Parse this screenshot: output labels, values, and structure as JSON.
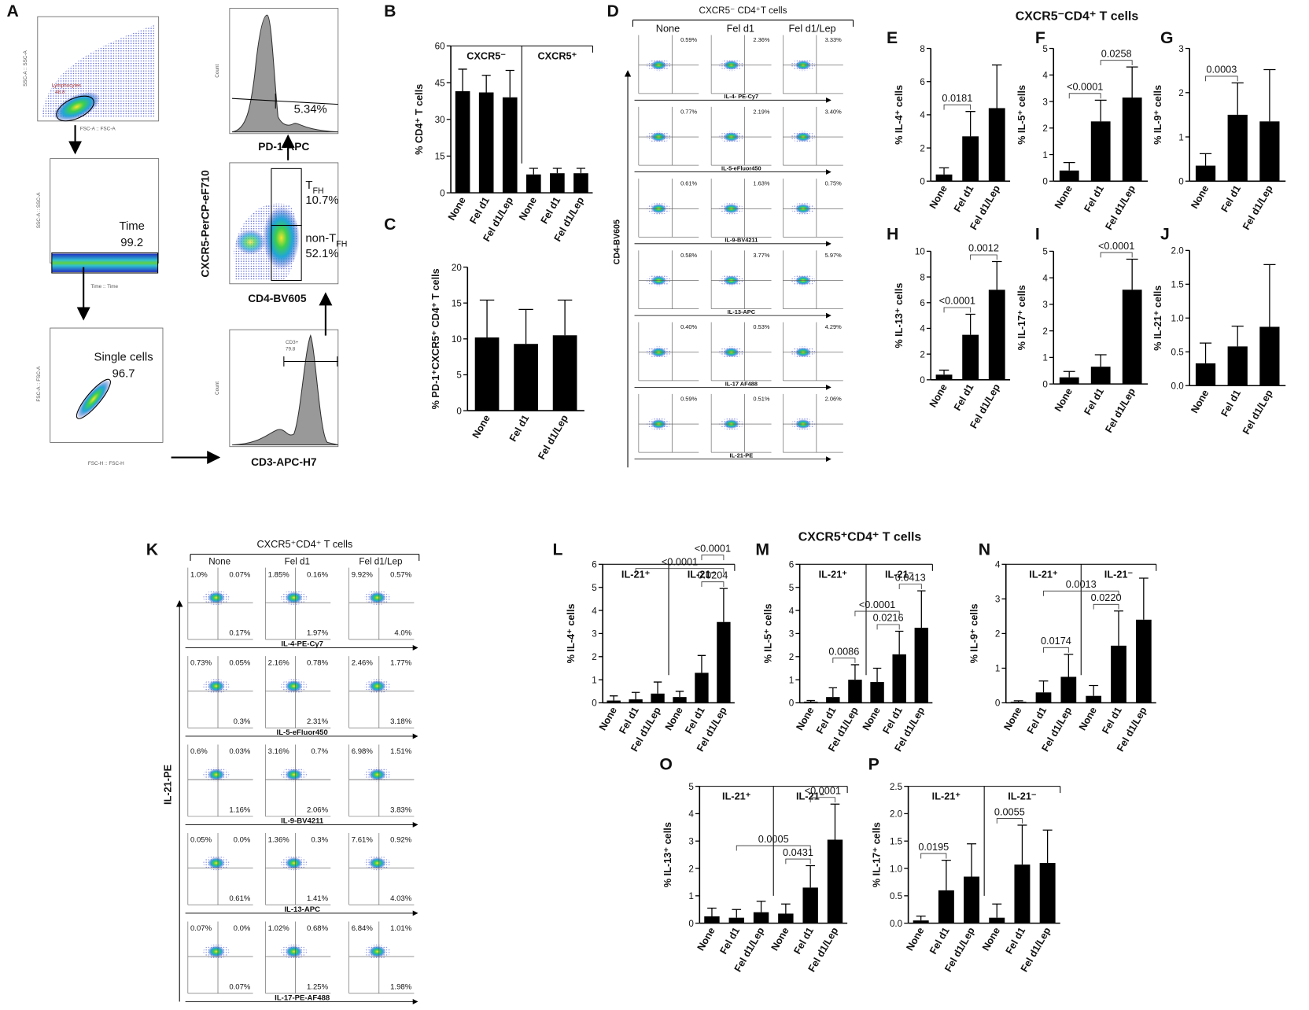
{
  "panel_labels": [
    "A",
    "B",
    "C",
    "D",
    "E",
    "F",
    "G",
    "H",
    "I",
    "J",
    "K",
    "L",
    "M",
    "N",
    "O",
    "P"
  ],
  "section_titles": [
    "CXCR5⁻CD4⁺ T cells",
    "CXCR5⁺CD4⁺ T cells"
  ],
  "gating": {
    "lymphocytes": {
      "name": "Lymphocytes",
      "value": "48.8",
      "x_axis": "FSC-A :: FSC-A",
      "y_axis": "SSC-A :: SSC-A"
    },
    "time": {
      "name": "Time",
      "value": "99.2",
      "x_axis": "Time :: Time",
      "y_axis": "SSC-A :: SSC-A"
    },
    "single_cells": {
      "name": "Single cells",
      "value": "96.7",
      "x_axis": "FSC-H :: FSC-H",
      "y_axis": "FSC-A :: FSC-A"
    },
    "cd3": {
      "name": "CD3+",
      "value": "79.8",
      "x_axis": "CD3-APC-H7",
      "y_axis": "Count"
    },
    "cxcr5_cd4": {
      "x_axis": "CD4-BV605",
      "y_axis": "CXCR5-PerCP-eF710",
      "tfh": {
        "name": "T",
        "sub": "FH",
        "value": "10.7%"
      },
      "non_tfh": {
        "name": "non-T",
        "sub": "FH",
        "value": "52.1%"
      }
    },
    "pd1": {
      "value": "5.34%",
      "x_axis": "PD-1-APC",
      "y_axis": "Count"
    }
  },
  "panel_d": {
    "title": "CXCR5⁻ CD4⁺T cells",
    "columns": [
      "None",
      "Fel d1",
      "Fel d1/Lep"
    ],
    "y_label": "CD4-BV605",
    "rows": [
      {
        "x_label": "IL-4- PE-Cy7",
        "values": [
          "0.59%",
          "2.36%",
          "3.33%"
        ]
      },
      {
        "x_label": "IL-5-eFluor450",
        "values": [
          "0.77%",
          "2.19%",
          "3.40%"
        ]
      },
      {
        "x_label": "IL-9-BV4211",
        "values": [
          "0.61%",
          "1.63%",
          "0.75%"
        ]
      },
      {
        "x_label": "IL-13-APC",
        "values": [
          "0.58%",
          "3.77%",
          "5.97%"
        ]
      },
      {
        "x_label": "IL-17 AF488",
        "values": [
          "0.40%",
          "0.53%",
          "4.29%"
        ]
      },
      {
        "x_label": "IL-21-PE",
        "values": [
          "0.59%",
          "0.51%",
          "2.06%"
        ]
      }
    ]
  },
  "panel_k": {
    "title": "CXCR5⁺CD4⁺ T cells",
    "columns": [
      "None",
      "Fel d1",
      "Fel d1/Lep"
    ],
    "y_label": "IL-21-PE",
    "rows": [
      {
        "x_label": "IL-4-PE-Cy7",
        "values": [
          [
            "1.0%",
            "0.07%",
            "0.17%"
          ],
          [
            "1.85%",
            "0.16%",
            "1.97%"
          ],
          [
            "9.92%",
            "0.57%",
            "4.0%"
          ]
        ]
      },
      {
        "x_label": "IL-5-eFluor450",
        "values": [
          [
            "0.73%",
            "0.05%",
            "0.3%"
          ],
          [
            "2.16%",
            "0.78%",
            "2.31%"
          ],
          [
            "2.46%",
            "1.77%",
            "3.18%"
          ]
        ]
      },
      {
        "x_label": "IL-9-BV4211",
        "values": [
          [
            "0.6%",
            "0.03%",
            "1.16%"
          ],
          [
            "3.16%",
            "0.7%",
            "2.06%"
          ],
          [
            "6.98%",
            "1.51%",
            "3.83%"
          ]
        ]
      },
      {
        "x_label": "IL-13-APC",
        "values": [
          [
            "0.05%",
            "0.0%",
            "0.61%"
          ],
          [
            "1.36%",
            "0.3%",
            "1.41%"
          ],
          [
            "7.61%",
            "0.92%",
            "4.03%"
          ]
        ]
      },
      {
        "x_label": "IL-17-PE-AF488",
        "values": [
          [
            "0.07%",
            "0.0%",
            "0.07%"
          ],
          [
            "1.02%",
            "0.68%",
            "1.25%"
          ],
          [
            "6.84%",
            "1.01%",
            "1.98%"
          ]
        ]
      }
    ]
  },
  "chart_data": [
    {
      "type": "bar",
      "y_label": "% CD4⁺ T cells",
      "categories": [
        "None",
        "Fel d1",
        "Fel d1/Lep",
        "None",
        "Fel d1",
        "Fel d1/Lep"
      ],
      "values": [
        41.5,
        41,
        39,
        7.5,
        8,
        8
      ],
      "errors": [
        9,
        7,
        11,
        2.5,
        2,
        2
      ],
      "color": "#000000",
      "ylim": [
        0,
        60
      ],
      "yticks": [
        0,
        15,
        30,
        45,
        60
      ],
      "groups": [
        "CXCR5⁻",
        "CXCR5⁺"
      ],
      "annotations": []
    },
    {
      "type": "bar",
      "y_label": "% PD-1⁺CXCR5⁺ CD4⁺ T cells",
      "categories": [
        "None",
        "Fel d1",
        "Fel d1/Lep"
      ],
      "values": [
        10.2,
        9.3,
        10.5
      ],
      "errors": [
        5.2,
        4.8,
        4.9
      ],
      "color": "#000000",
      "ylim": [
        0,
        20
      ],
      "yticks": [
        0,
        5,
        10,
        15,
        20
      ],
      "annotations": []
    },
    {
      "type": "bar",
      "y_label": "% IL-4⁺ cells",
      "categories": [
        "None",
        "Fel d1",
        "Fel d1/Lep"
      ],
      "values": [
        0.4,
        2.7,
        4.4
      ],
      "errors": [
        0.4,
        1.5,
        2.6
      ],
      "color": "#000000",
      "ylim": [
        0,
        8
      ],
      "yticks": [
        0,
        2,
        4,
        6,
        8
      ],
      "annotations": [
        {
          "from": 0,
          "to": 1,
          "label": "0.0181"
        }
      ]
    },
    {
      "type": "bar",
      "y_label": "% IL-5⁺ cells",
      "categories": [
        "None",
        "Fel d1",
        "Fel d1/Lep"
      ],
      "values": [
        0.4,
        2.25,
        3.15
      ],
      "errors": [
        0.3,
        0.8,
        1.15
      ],
      "color": "#000000",
      "ylim": [
        0,
        5
      ],
      "yticks": [
        0,
        1,
        2,
        3,
        4,
        5
      ],
      "annotations": [
        {
          "from": 0,
          "to": 1,
          "label": "<0.0001"
        },
        {
          "from": 1,
          "to": 2,
          "label": "0.0258"
        }
      ]
    },
    {
      "type": "bar",
      "y_label": "% IL-9⁺ cells",
      "categories": [
        "None",
        "Fel d1",
        "Fel d1/Lep"
      ],
      "values": [
        0.35,
        1.5,
        1.35
      ],
      "errors": [
        0.27,
        0.72,
        1.17
      ],
      "color": "#000000",
      "ylim": [
        0,
        3
      ],
      "yticks": [
        0,
        1,
        2,
        3
      ],
      "annotations": [
        {
          "from": 0,
          "to": 1,
          "label": "0.0003"
        }
      ]
    },
    {
      "type": "bar",
      "y_label": "% IL-13⁺ cells",
      "categories": [
        "None",
        "Fel d1",
        "Fel d1/Lep"
      ],
      "values": [
        0.4,
        3.5,
        7.0
      ],
      "errors": [
        0.35,
        1.6,
        2.2
      ],
      "color": "#000000",
      "ylim": [
        0,
        10
      ],
      "yticks": [
        0,
        2,
        4,
        6,
        8,
        10
      ],
      "annotations": [
        {
          "from": 0,
          "to": 1,
          "label": "<0.0001"
        },
        {
          "from": 1,
          "to": 2,
          "label": "0.0012"
        }
      ]
    },
    {
      "type": "bar",
      "y_label": "% IL-17⁺ cells",
      "categories": [
        "None",
        "Fel d1",
        "Fel d1/Lep"
      ],
      "values": [
        0.25,
        0.65,
        3.55
      ],
      "errors": [
        0.22,
        0.45,
        1.15
      ],
      "color": "#000000",
      "ylim": [
        0,
        5
      ],
      "yticks": [
        0,
        1,
        2,
        3,
        4,
        5
      ],
      "annotations": [
        {
          "from": 1,
          "to": 2,
          "label": "<0.0001"
        }
      ]
    },
    {
      "type": "bar",
      "y_label": "% IL-21⁺ cells",
      "categories": [
        "None",
        "Fel d1",
        "Fel d1/Lep"
      ],
      "values": [
        0.33,
        0.58,
        0.87
      ],
      "errors": [
        0.3,
        0.3,
        0.92
      ],
      "color": "#000000",
      "ylim": [
        0,
        2
      ],
      "yticks": [
        {
          "value": 0,
          "label": "0.0"
        },
        {
          "value": 0.5,
          "label": "0.5"
        },
        {
          "value": 1,
          "label": "1.0"
        },
        {
          "value": 1.5,
          "label": "1.5"
        },
        {
          "value": 2,
          "label": "2.0"
        }
      ],
      "annotations": []
    },
    {
      "type": "bar",
      "y_label": "% IL-4⁺ cells",
      "categories": [
        "None",
        "Fel d1",
        "Fel d1/Lep",
        "None",
        "Fel d1",
        "Fel d1/Lep"
      ],
      "values": [
        0.1,
        0.15,
        0.4,
        0.25,
        1.3,
        3.5
      ],
      "errors": [
        0.2,
        0.3,
        0.5,
        0.25,
        0.75,
        1.45
      ],
      "color": "#000000",
      "ylim": [
        0,
        6
      ],
      "yticks": [
        0,
        1,
        2,
        3,
        4,
        5,
        6
      ],
      "groups": [
        "IL-21⁺",
        "IL-21⁻"
      ],
      "annotations": [
        {
          "from": 4,
          "to": 5,
          "label": "0.0204"
        },
        {
          "from": 1,
          "to": 5,
          "label": "<0.0001"
        },
        {
          "from": 4,
          "to": 5,
          "label": "<0.0001"
        }
      ]
    },
    {
      "type": "bar",
      "y_label": "% IL-5⁺ cells",
      "categories": [
        "None",
        "Fel d1",
        "Fel d1/Lep",
        "None",
        "Fel d1",
        "Fel d1/Lep"
      ],
      "values": [
        0.05,
        0.25,
        1.0,
        0.9,
        2.1,
        3.25
      ],
      "errors": [
        0.05,
        0.4,
        0.65,
        0.6,
        1.0,
        1.6
      ],
      "color": "#000000",
      "ylim": [
        0,
        6
      ],
      "yticks": [
        0,
        1,
        2,
        3,
        4,
        5,
        6
      ],
      "groups": [
        "IL-21⁺",
        "IL-21⁻"
      ],
      "annotations": [
        {
          "from": 1,
          "to": 2,
          "label": "0.0086"
        },
        {
          "from": 3,
          "to": 4,
          "label": "0.0216"
        },
        {
          "from": 2,
          "to": 4,
          "label": "<0.0001"
        },
        {
          "from": 4,
          "to": 5,
          "label": "0.0413"
        }
      ]
    },
    {
      "type": "bar",
      "y_label": "% IL-9⁺ cells",
      "categories": [
        "None",
        "Fel d1",
        "Fel d1/Lep",
        "None",
        "Fel d1",
        "Fel d1/Lep"
      ],
      "values": [
        0.03,
        0.3,
        0.75,
        0.2,
        1.65,
        2.4
      ],
      "errors": [
        0.03,
        0.33,
        0.65,
        0.3,
        1.0,
        1.2
      ],
      "color": "#000000",
      "ylim": [
        0,
        4
      ],
      "yticks": [
        0,
        1,
        2,
        3,
        4
      ],
      "groups": [
        "IL-21⁺",
        "IL-21⁻"
      ],
      "annotations": [
        {
          "from": 1,
          "to": 2,
          "label": "0.0174"
        },
        {
          "from": 3,
          "to": 4,
          "label": "0.0220"
        },
        {
          "from": 1,
          "to": 4,
          "label": "0.0013"
        }
      ]
    },
    {
      "type": "bar",
      "y_label": "% IL-13⁺ cells",
      "categories": [
        "None",
        "Fel d1",
        "Fel d1/Lep",
        "None",
        "Fel d1",
        "Fel d1/Lep"
      ],
      "values": [
        0.25,
        0.2,
        0.4,
        0.35,
        1.3,
        3.05
      ],
      "errors": [
        0.3,
        0.3,
        0.4,
        0.35,
        0.8,
        1.3
      ],
      "color": "#000000",
      "ylim": [
        0,
        5
      ],
      "yticks": [
        0,
        1,
        2,
        3,
        4,
        5
      ],
      "groups": [
        "IL-21⁺",
        "IL-21⁻"
      ],
      "annotations": [
        {
          "from": 3,
          "to": 4,
          "label": "0.0431"
        },
        {
          "from": 1,
          "to": 4,
          "label": "0.0005"
        },
        {
          "from": 4,
          "to": 5,
          "label": "<0.0001"
        }
      ]
    },
    {
      "type": "bar",
      "y_label": "% IL-17⁺ cells",
      "categories": [
        "None",
        "Fel d1",
        "Fel d1/Lep",
        "None",
        "Fel d1",
        "Fel d1/Lep"
      ],
      "values": [
        0.05,
        0.6,
        0.85,
        0.1,
        1.07,
        1.1
      ],
      "errors": [
        0.08,
        0.55,
        0.6,
        0.25,
        0.72,
        0.6
      ],
      "color": "#000000",
      "ylim": [
        0,
        2.5
      ],
      "yticks": [
        {
          "value": 0,
          "label": "0.0"
        },
        {
          "value": 0.5,
          "label": "0.5"
        },
        {
          "value": 1,
          "label": "1.0"
        },
        {
          "value": 1.5,
          "label": "1.5"
        },
        {
          "value": 2,
          "label": "2.0"
        },
        {
          "value": 2.5,
          "label": "2.5"
        }
      ],
      "groups": [
        "IL-21⁺",
        "IL-21⁻"
      ],
      "annotations": [
        {
          "from": 0,
          "to": 1,
          "label": "0.0195"
        },
        {
          "from": 3,
          "to": 4,
          "label": "0.0055"
        }
      ]
    }
  ]
}
